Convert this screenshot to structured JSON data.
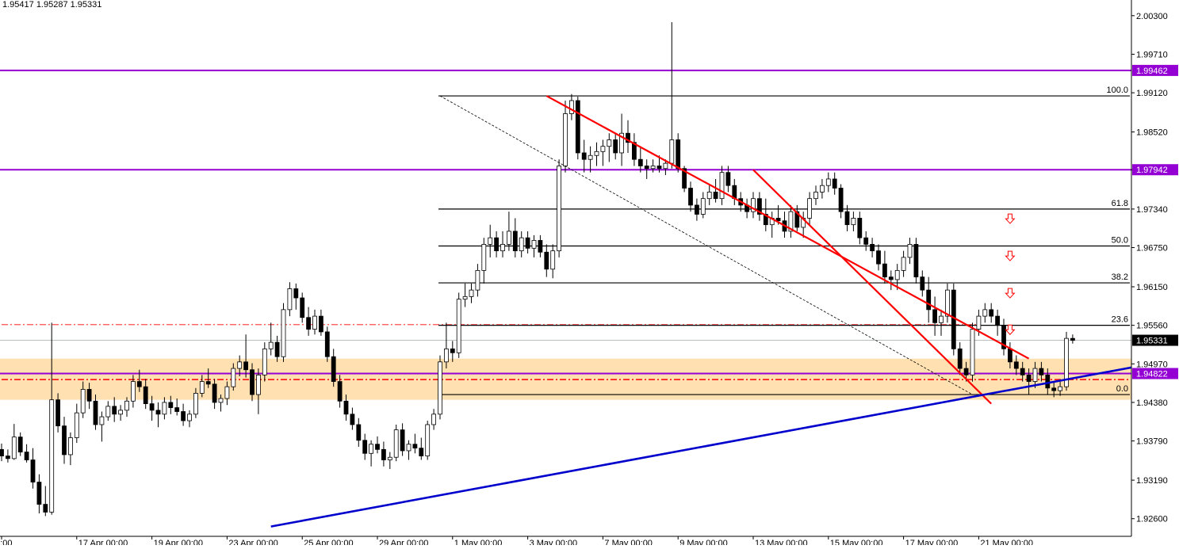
{
  "ohlc_text": "1.95417 1.95287 1.95331",
  "colors": {
    "purple": "#9400D3",
    "red": "#FF0000",
    "blue": "#0000CD",
    "zone": "#FFE0B0",
    "candle": "#000000",
    "current": "#000000"
  },
  "chart_data": {
    "type": "candlestick",
    "ylim": [
      1.9233,
      2.0054
    ],
    "y_ticks": [
      "2.00300",
      "1.99710",
      "1.99120",
      "1.98520",
      "1.97940",
      "1.97340",
      "1.96750",
      "1.96150",
      "1.95560",
      "1.94970",
      "1.94380",
      "1.93790",
      "1.93190",
      "1.92600"
    ],
    "x_ticks": [
      {
        "i": 0,
        "label": "00:00"
      },
      {
        "i": 12,
        "label": "17 Apr 00:00"
      },
      {
        "i": 24,
        "label": "19 Apr 00:00"
      },
      {
        "i": 36,
        "label": "23 Apr 00:00"
      },
      {
        "i": 48,
        "label": "25 Apr 00:00"
      },
      {
        "i": 60,
        "label": "29 Apr 00:00"
      },
      {
        "i": 72,
        "label": "1 May 00:00"
      },
      {
        "i": 84,
        "label": "3 May 00:00"
      },
      {
        "i": 96,
        "label": "7 May 00:00"
      },
      {
        "i": 108,
        "label": "9 May 00:00"
      },
      {
        "i": 120,
        "label": "13 May 00:00"
      },
      {
        "i": 132,
        "label": "15 May 00:00"
      },
      {
        "i": 144,
        "label": "17 May 00:00"
      },
      {
        "i": 156,
        "label": "21 May 00:00"
      }
    ],
    "bar_spacing_px": 7.9,
    "first_bar_px": 2,
    "horizontal_levels": [
      {
        "price": 1.99462,
        "label": "1.99462",
        "color": "#9400D3"
      },
      {
        "price": 1.97942,
        "label": "1.97942",
        "color": "#9400D3"
      },
      {
        "price": 1.94822,
        "label": "1.94822",
        "color": "#9400D3"
      }
    ],
    "current_price": {
      "price": 1.95331,
      "label": "1.95331"
    },
    "zone": {
      "from": 1.9442,
      "to": 1.9505
    },
    "fibonacci": {
      "from_i": 70,
      "to_i": 161,
      "levels": [
        {
          "label": "100.0",
          "price": 1.99072
        },
        {
          "label": "61.8",
          "price": 1.9734
        },
        {
          "label": "50.0",
          "price": 1.96775
        },
        {
          "label": "38.2",
          "price": 1.9621
        },
        {
          "label": "23.6",
          "price": 1.9556
        },
        {
          "label": "0.0",
          "price": 1.945
        }
      ]
    },
    "dashdot_lines": [
      {
        "price": 1.9557,
        "from_i": 0,
        "to_i": 156
      },
      {
        "price": 1.9473,
        "from_i": 0,
        "to_i": 180
      }
    ],
    "arrows": [
      {
        "i": 161,
        "price": 1.9718
      },
      {
        "i": 161,
        "price": 1.9661
      },
      {
        "i": 161,
        "price": 1.9604
      },
      {
        "i": 161,
        "price": 1.9548
      }
    ],
    "trendlines": [
      {
        "color": "#FF0000",
        "width": 2.2,
        "points": [
          [
            87,
            1.99072
          ],
          [
            164,
            1.9505
          ]
        ]
      },
      {
        "color": "#FF0000",
        "width": 2.2,
        "points": [
          [
            120,
            1.9794
          ],
          [
            158,
            1.9436
          ]
        ]
      },
      {
        "color": "#0000CD",
        "width": 2.6,
        "points": [
          [
            43,
            1.9248
          ],
          [
            188,
            1.9505
          ]
        ]
      },
      {
        "color": "#000000",
        "width": 0.8,
        "dash": "3,2",
        "points": [
          [
            70,
            1.99072
          ],
          [
            155,
            1.945
          ]
        ]
      }
    ],
    "candles": [
      [
        1.9366,
        1.9375,
        1.9348,
        1.9356
      ],
      [
        1.9356,
        1.9366,
        1.9346,
        1.9352
      ],
      [
        1.9352,
        1.9405,
        1.935,
        1.9385
      ],
      [
        1.9385,
        1.9392,
        1.9356,
        1.9362
      ],
      [
        1.9362,
        1.9374,
        1.9346,
        1.935
      ],
      [
        1.935,
        1.9368,
        1.9306,
        1.9316
      ],
      [
        1.9316,
        1.9328,
        1.9268,
        1.9282
      ],
      [
        1.9282,
        1.931,
        1.9264,
        1.927
      ],
      [
        1.927,
        1.956,
        1.9266,
        1.9442
      ],
      [
        1.9442,
        1.9452,
        1.9392,
        1.9402
      ],
      [
        1.9402,
        1.9416,
        1.9344,
        1.9358
      ],
      [
        1.9358,
        1.9392,
        1.9342,
        1.9384
      ],
      [
        1.9384,
        1.9436,
        1.9376,
        1.9422
      ],
      [
        1.9422,
        1.947,
        1.9414,
        1.9458
      ],
      [
        1.9458,
        1.9468,
        1.9428,
        1.944
      ],
      [
        1.944,
        1.945,
        1.9396,
        1.9404
      ],
      [
        1.9404,
        1.9424,
        1.9378,
        1.9416
      ],
      [
        1.9416,
        1.944,
        1.941,
        1.9432
      ],
      [
        1.9432,
        1.9446,
        1.9408,
        1.942
      ],
      [
        1.942,
        1.9434,
        1.941,
        1.9426
      ],
      [
        1.9426,
        1.9446,
        1.9416,
        1.944
      ],
      [
        1.944,
        1.948,
        1.943,
        1.947
      ],
      [
        1.947,
        1.9488,
        1.9454,
        1.9462
      ],
      [
        1.9462,
        1.9474,
        1.9428,
        1.9436
      ],
      [
        1.9436,
        1.9448,
        1.941,
        1.9426
      ],
      [
        1.9426,
        1.9438,
        1.94,
        1.942
      ],
      [
        1.942,
        1.9446,
        1.9412,
        1.9438
      ],
      [
        1.9438,
        1.9448,
        1.942,
        1.943
      ],
      [
        1.943,
        1.9444,
        1.9418,
        1.9424
      ],
      [
        1.9424,
        1.9436,
        1.9402,
        1.941
      ],
      [
        1.941,
        1.9426,
        1.94,
        1.942
      ],
      [
        1.942,
        1.946,
        1.9414,
        1.9452
      ],
      [
        1.9452,
        1.948,
        1.9446,
        1.947
      ],
      [
        1.947,
        1.949,
        1.946,
        1.9466
      ],
      [
        1.9466,
        1.9474,
        1.9428,
        1.9438
      ],
      [
        1.9438,
        1.945,
        1.9424,
        1.9444
      ],
      [
        1.9444,
        1.947,
        1.9434,
        1.9462
      ],
      [
        1.9462,
        1.9498,
        1.9456,
        1.949
      ],
      [
        1.949,
        1.951,
        1.9478,
        1.95
      ],
      [
        1.95,
        1.9542,
        1.9476,
        1.9488
      ],
      [
        1.9488,
        1.9498,
        1.944,
        1.945
      ],
      [
        1.945,
        1.949,
        1.942,
        1.948
      ],
      [
        1.948,
        1.953,
        1.947,
        1.952
      ],
      [
        1.952,
        1.956,
        1.951,
        1.953
      ],
      [
        1.953,
        1.954,
        1.95,
        1.9508
      ],
      [
        1.9508,
        1.959,
        1.95,
        1.958
      ],
      [
        1.958,
        1.9622,
        1.957,
        1.9612
      ],
      [
        1.9612,
        1.962,
        1.958,
        1.9598
      ],
      [
        1.9598,
        1.9606,
        1.956,
        1.9568
      ],
      [
        1.9568,
        1.9584,
        1.954,
        1.955
      ],
      [
        1.955,
        1.958,
        1.9542,
        1.957
      ],
      [
        1.957,
        1.958,
        1.954,
        1.9546
      ],
      [
        1.9546,
        1.9554,
        1.95,
        1.9508
      ],
      [
        1.9508,
        1.952,
        1.9462,
        1.947
      ],
      [
        1.947,
        1.948,
        1.943,
        1.944
      ],
      [
        1.944,
        1.945,
        1.941,
        1.942
      ],
      [
        1.942,
        1.943,
        1.9396,
        1.9404
      ],
      [
        1.9404,
        1.9414,
        1.937,
        1.938
      ],
      [
        1.938,
        1.939,
        1.935,
        1.936
      ],
      [
        1.936,
        1.938,
        1.934,
        1.9374
      ],
      [
        1.9374,
        1.9386,
        1.936,
        1.9366
      ],
      [
        1.9366,
        1.9378,
        1.934,
        1.935
      ],
      [
        1.935,
        1.9362,
        1.9336,
        1.9354
      ],
      [
        1.9354,
        1.9404,
        1.9348,
        1.9396
      ],
      [
        1.9396,
        1.9406,
        1.9356,
        1.9364
      ],
      [
        1.9364,
        1.938,
        1.935,
        1.9374
      ],
      [
        1.9374,
        1.939,
        1.936,
        1.9368
      ],
      [
        1.9368,
        1.9384,
        1.935,
        1.9356
      ],
      [
        1.9356,
        1.941,
        1.935,
        1.9404
      ],
      [
        1.9404,
        1.9428,
        1.9396,
        1.942
      ],
      [
        1.942,
        1.951,
        1.9412,
        1.95
      ],
      [
        1.95,
        1.956,
        1.949,
        1.952
      ],
      [
        1.952,
        1.9532,
        1.95,
        1.9514
      ],
      [
        1.9514,
        1.9606,
        1.9506,
        1.9596
      ],
      [
        1.9596,
        1.962,
        1.9584,
        1.96
      ],
      [
        1.96,
        1.962,
        1.959,
        1.961
      ],
      [
        1.961,
        1.965,
        1.96,
        1.964
      ],
      [
        1.964,
        1.969,
        1.962,
        1.968
      ],
      [
        1.968,
        1.971,
        1.966,
        1.969
      ],
      [
        1.969,
        1.97,
        1.966,
        1.967
      ],
      [
        1.967,
        1.97,
        1.966,
        1.968
      ],
      [
        1.968,
        1.973,
        1.967,
        1.97
      ],
      [
        1.97,
        1.972,
        1.966,
        1.967
      ],
      [
        1.967,
        1.97,
        1.966,
        1.969
      ],
      [
        1.969,
        1.97,
        1.9666,
        1.9674
      ],
      [
        1.9674,
        1.9694,
        1.966,
        1.9686
      ],
      [
        1.9686,
        1.9694,
        1.966,
        1.9668
      ],
      [
        1.9668,
        1.968,
        1.963,
        1.9642
      ],
      [
        1.9642,
        1.968,
        1.9628,
        1.967
      ],
      [
        1.967,
        1.981,
        1.966,
        1.98
      ],
      [
        1.98,
        1.99,
        1.979,
        1.988
      ],
      [
        1.988,
        1.991,
        1.987,
        1.99
      ],
      [
        1.99,
        1.9906,
        1.981,
        1.982
      ],
      [
        1.982,
        1.984,
        1.979,
        1.981
      ],
      [
        1.981,
        1.983,
        1.979,
        1.9816
      ],
      [
        1.9816,
        1.9836,
        1.98,
        1.9822
      ],
      [
        1.9822,
        1.984,
        1.98,
        1.983
      ],
      [
        1.983,
        1.985,
        1.9806,
        1.984
      ],
      [
        1.984,
        1.985,
        1.981,
        1.982
      ],
      [
        1.982,
        1.988,
        1.98,
        1.985
      ],
      [
        1.985,
        1.987,
        1.982,
        1.9836
      ],
      [
        1.9836,
        1.985,
        1.98,
        1.981
      ],
      [
        1.981,
        1.983,
        1.979,
        1.98
      ],
      [
        1.98,
        1.981,
        1.978,
        1.9796
      ],
      [
        1.9796,
        1.981,
        1.979,
        1.98
      ],
      [
        1.98,
        1.9816,
        1.979,
        1.9796
      ],
      [
        1.9796,
        1.981,
        1.9786,
        1.9804
      ],
      [
        1.9804,
        2.002,
        1.9796,
        1.984
      ],
      [
        1.984,
        1.985,
        1.979,
        1.9796
      ],
      [
        1.9796,
        1.98,
        1.976,
        1.9766
      ],
      [
        1.9766,
        1.9776,
        1.973,
        1.974
      ],
      [
        1.974,
        1.975,
        1.9716,
        1.9726
      ],
      [
        1.9726,
        1.976,
        1.972,
        1.975
      ],
      [
        1.975,
        1.977,
        1.974,
        1.976
      ],
      [
        1.976,
        1.978,
        1.9744,
        1.975
      ],
      [
        1.975,
        1.98,
        1.974,
        1.979
      ],
      [
        1.979,
        1.98,
        1.976,
        1.977
      ],
      [
        1.977,
        1.978,
        1.974,
        1.975
      ],
      [
        1.975,
        1.976,
        1.973,
        1.974
      ],
      [
        1.974,
        1.975,
        1.972,
        1.973
      ],
      [
        1.973,
        1.976,
        1.972,
        1.975
      ],
      [
        1.975,
        1.976,
        1.9716,
        1.9726
      ],
      [
        1.9726,
        1.975,
        1.97,
        1.971
      ],
      [
        1.971,
        1.973,
        1.969,
        1.972
      ],
      [
        1.972,
        1.974,
        1.971,
        1.9716
      ],
      [
        1.9716,
        1.973,
        1.969,
        1.97
      ],
      [
        1.97,
        1.974,
        1.969,
        1.973
      ],
      [
        1.973,
        1.974,
        1.97,
        1.9706
      ],
      [
        1.9706,
        1.973,
        1.969,
        1.972
      ],
      [
        1.972,
        1.976,
        1.971,
        1.975
      ],
      [
        1.975,
        1.977,
        1.974,
        1.976
      ],
      [
        1.976,
        1.978,
        1.975,
        1.977
      ],
      [
        1.977,
        1.979,
        1.976,
        1.978
      ],
      [
        1.978,
        1.979,
        1.9756,
        1.9766
      ],
      [
        1.9766,
        1.9772,
        1.972,
        1.973
      ],
      [
        1.973,
        1.974,
        1.97,
        1.971
      ],
      [
        1.971,
        1.973,
        1.97,
        1.972
      ],
      [
        1.972,
        1.973,
        1.968,
        1.969
      ],
      [
        1.969,
        1.97,
        1.967,
        1.968
      ],
      [
        1.968,
        1.969,
        1.966,
        1.967
      ],
      [
        1.967,
        1.968,
        1.964,
        1.965
      ],
      [
        1.965,
        1.967,
        1.962,
        1.963
      ],
      [
        1.963,
        1.964,
        1.961,
        1.9626
      ],
      [
        1.9626,
        1.965,
        1.961,
        1.964
      ],
      [
        1.964,
        1.967,
        1.963,
        1.966
      ],
      [
        1.966,
        1.969,
        1.965,
        1.968
      ],
      [
        1.968,
        1.969,
        1.962,
        1.963
      ],
      [
        1.963,
        1.964,
        1.96,
        1.961
      ],
      [
        1.961,
        1.963,
        1.956,
        1.958
      ],
      [
        1.958,
        1.96,
        1.954,
        1.956
      ],
      [
        1.956,
        1.958,
        1.954,
        1.957
      ],
      [
        1.957,
        1.962,
        1.956,
        1.961
      ],
      [
        1.961,
        1.962,
        1.951,
        1.952
      ],
      [
        1.952,
        1.953,
        1.948,
        1.949
      ],
      [
        1.949,
        1.95,
        1.947,
        1.948
      ],
      [
        1.948,
        1.956,
        1.947,
        1.955
      ],
      [
        1.955,
        1.958,
        1.954,
        1.957
      ],
      [
        1.957,
        1.959,
        1.956,
        1.958
      ],
      [
        1.958,
        1.959,
        1.956,
        1.957
      ],
      [
        1.957,
        1.958,
        1.954,
        1.9556
      ],
      [
        1.9556,
        1.9566,
        1.951,
        1.952
      ],
      [
        1.952,
        1.953,
        1.949,
        1.95
      ],
      [
        1.95,
        1.951,
        1.948,
        1.949
      ],
      [
        1.949,
        1.95,
        1.947,
        1.948
      ],
      [
        1.948,
        1.949,
        1.945,
        1.947
      ],
      [
        1.947,
        1.95,
        1.946,
        1.949
      ],
      [
        1.949,
        1.95,
        1.947,
        1.948
      ],
      [
        1.948,
        1.949,
        1.945,
        1.946
      ],
      [
        1.946,
        1.947,
        1.9446,
        1.9456
      ],
      [
        1.9456,
        1.947,
        1.9448,
        1.9462
      ],
      [
        1.9462,
        1.9546,
        1.9456,
        1.9536
      ],
      [
        1.9536,
        1.9542,
        1.9528,
        1.9533
      ]
    ]
  }
}
